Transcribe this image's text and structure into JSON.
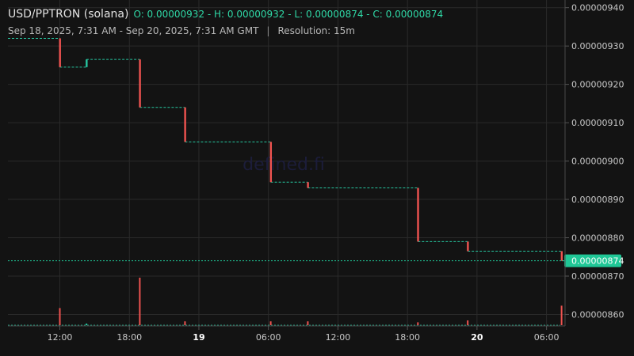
{
  "header": {
    "pair": "USD/PPTRON (solana)",
    "ohlc": "O: 0.00000932 - H: 0.00000932 - L: 0.00000874 - C: 0.00000874",
    "range": "Sep 18, 2025, 7:31 AM - Sep 20, 2025, 7:31 AM GMT",
    "separator": "|",
    "resolution": "Resolution: 15m"
  },
  "watermark": "defined.fi",
  "colors": {
    "background": "#131313",
    "grid": "#2a2a2a",
    "up": "#26c6a0",
    "down": "#ef5350",
    "current_price_badge": "#1fc796",
    "axis_text": "#c8c8c8"
  },
  "chart_data": {
    "type": "candlestick",
    "y_axis": {
      "side": "right",
      "ylim": [
        8.57e-06,
        9.42e-06
      ],
      "ticks": [
        "0.00000940",
        "0.00000930",
        "0.00000920",
        "0.00000910",
        "0.00000900",
        "0.00000890",
        "0.00000880",
        "0.00000870",
        "0.00000860"
      ]
    },
    "x_axis": {
      "labels": [
        {
          "label": "12:00",
          "hour": 12,
          "bold": false
        },
        {
          "label": "18:00",
          "hour": 18,
          "bold": false
        },
        {
          "label": "19",
          "hour": 24,
          "bold": true
        },
        {
          "label": "06:00",
          "hour": 30,
          "bold": false
        },
        {
          "label": "12:00",
          "hour": 36,
          "bold": false
        },
        {
          "label": "18:00",
          "hour": 42,
          "bold": false
        },
        {
          "label": "20",
          "hour": 48,
          "bold": true
        },
        {
          "label": "06:00",
          "hour": 54,
          "bold": false
        }
      ],
      "xlim_hours": [
        7.52,
        55.6
      ]
    },
    "last_price": "0.00000874",
    "steps": [
      {
        "start": 7.52,
        "end": 12.0,
        "price": 9.32e-06
      },
      {
        "start": 12.0,
        "end": 14.3,
        "price": 9.245e-06
      },
      {
        "start": 14.3,
        "end": 18.9,
        "price": 9.265e-06
      },
      {
        "start": 18.9,
        "end": 22.8,
        "price": 9.14e-06
      },
      {
        "start": 22.8,
        "end": 30.2,
        "price": 9.05e-06
      },
      {
        "start": 30.2,
        "end": 33.4,
        "price": 8.945e-06
      },
      {
        "start": 33.4,
        "end": 42.9,
        "price": 8.93e-06
      },
      {
        "start": 42.9,
        "end": 47.2,
        "price": 8.79e-06
      },
      {
        "start": 47.2,
        "end": 55.3,
        "price": 8.765e-06
      },
      {
        "start": 55.3,
        "end": 55.5,
        "price": 8.74e-06
      }
    ],
    "candles": [
      {
        "t": 12.0,
        "open": 9.32e-06,
        "close": 9.245e-06
      },
      {
        "t": 14.3,
        "open": 9.245e-06,
        "close": 9.265e-06
      },
      {
        "t": 18.9,
        "open": 9.265e-06,
        "close": 9.14e-06
      },
      {
        "t": 22.8,
        "open": 9.14e-06,
        "close": 9.05e-06
      },
      {
        "t": 30.2,
        "open": 9.05e-06,
        "close": 8.945e-06
      },
      {
        "t": 33.4,
        "open": 8.945e-06,
        "close": 8.93e-06
      },
      {
        "t": 42.9,
        "open": 8.93e-06,
        "close": 8.79e-06
      },
      {
        "t": 47.2,
        "open": 8.79e-06,
        "close": 8.765e-06
      },
      {
        "t": 55.3,
        "open": 8.765e-06,
        "close": 8.74e-06
      }
    ],
    "volume": [
      {
        "t": 12.0,
        "rel": 0.36,
        "dir": "down"
      },
      {
        "t": 14.3,
        "rel": 0.03,
        "dir": "up"
      },
      {
        "t": 18.9,
        "rel": 1.0,
        "dir": "down"
      },
      {
        "t": 22.8,
        "rel": 0.08,
        "dir": "down"
      },
      {
        "t": 30.2,
        "rel": 0.08,
        "dir": "down"
      },
      {
        "t": 33.4,
        "rel": 0.08,
        "dir": "down"
      },
      {
        "t": 42.9,
        "rel": 0.06,
        "dir": "down"
      },
      {
        "t": 47.2,
        "rel": 0.1,
        "dir": "down"
      },
      {
        "t": 55.3,
        "rel": 0.41,
        "dir": "down"
      }
    ]
  }
}
